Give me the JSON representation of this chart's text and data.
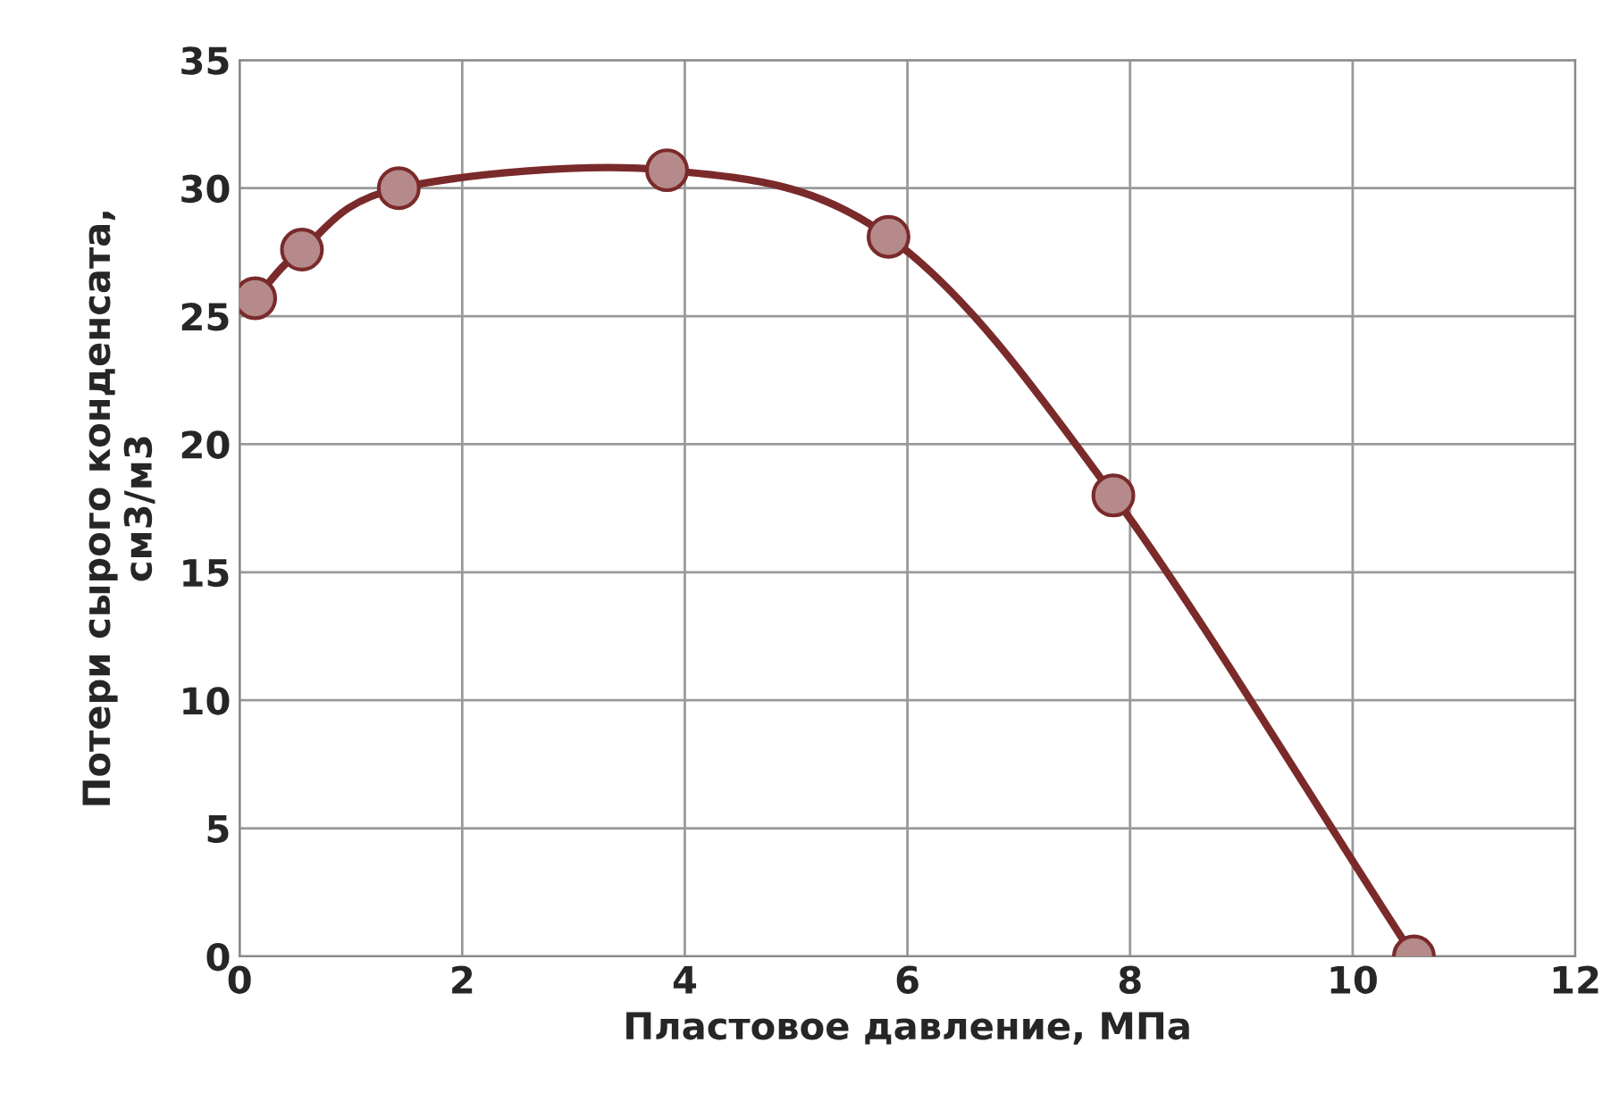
{
  "chart_data": {
    "type": "line",
    "xlabel": "Пластовое давление, МПа",
    "ylabel": "Потери сырого конденсата,\nсм3/м3",
    "series": [
      {
        "color": "#7a2a2a",
        "x": [
          0.14,
          0.56,
          1.43,
          3.84,
          5.83,
          7.85,
          10.55
        ],
        "values": [
          25.7,
          27.6,
          30.0,
          30.7,
          28.1,
          18.0,
          0
        ]
      }
    ],
    "xlim": [
      0,
      12
    ],
    "xticks": [
      0,
      2,
      4,
      6,
      8,
      10,
      12
    ],
    "ylim": [
      0,
      35
    ],
    "yticks": [
      0,
      5,
      10,
      15,
      20,
      25,
      30,
      35
    ],
    "grid": true,
    "marker": "circle",
    "line_style": "solid",
    "legend": false
  }
}
